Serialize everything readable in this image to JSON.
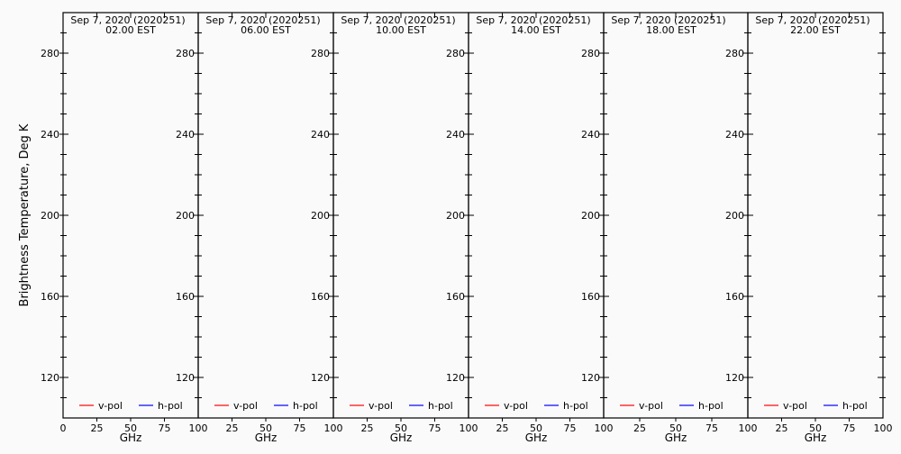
{
  "chart_data": [
    {
      "type": "line",
      "title": "Sep  7, 2020 (2020251)",
      "subtitle": "02.00 EST",
      "xlabel": "GHz",
      "xlim": [
        0,
        100
      ],
      "ylim": [
        100,
        300
      ],
      "xticks": [
        "0",
        "25",
        "50",
        "75",
        "100"
      ],
      "yticks": [
        "120",
        "160",
        "200",
        "240",
        "280"
      ],
      "series": [
        {
          "name": "v-pol",
          "color": "#ff0000",
          "x": [],
          "y": []
        },
        {
          "name": "h-pol",
          "color": "#0000ff",
          "x": [],
          "y": []
        }
      ],
      "legend": "bottom"
    },
    {
      "type": "line",
      "title": "Sep  7, 2020 (2020251)",
      "subtitle": "06.00 EST",
      "xlabel": "GHz",
      "xlim": [
        0,
        100
      ],
      "ylim": [
        100,
        300
      ],
      "xticks": [
        "25",
        "50",
        "75",
        "100"
      ],
      "yticks": [
        "120",
        "160",
        "200",
        "240",
        "280"
      ],
      "series": [
        {
          "name": "v-pol",
          "color": "#ff0000",
          "x": [],
          "y": []
        },
        {
          "name": "h-pol",
          "color": "#0000ff",
          "x": [],
          "y": []
        }
      ],
      "legend": "bottom"
    },
    {
      "type": "line",
      "title": "Sep  7, 2020 (2020251)",
      "subtitle": "10.00 EST",
      "xlabel": "GHz",
      "xlim": [
        0,
        100
      ],
      "ylim": [
        100,
        300
      ],
      "xticks": [
        "25",
        "50",
        "75",
        "100"
      ],
      "yticks": [
        "120",
        "160",
        "200",
        "240",
        "280"
      ],
      "series": [
        {
          "name": "v-pol",
          "color": "#ff0000",
          "x": [],
          "y": []
        },
        {
          "name": "h-pol",
          "color": "#0000ff",
          "x": [],
          "y": []
        }
      ],
      "legend": "bottom"
    },
    {
      "type": "line",
      "title": "Sep  7, 2020 (2020251)",
      "subtitle": "14.00 EST",
      "xlabel": "GHz",
      "xlim": [
        0,
        100
      ],
      "ylim": [
        100,
        300
      ],
      "xticks": [
        "25",
        "50",
        "75",
        "100"
      ],
      "yticks": [
        "120",
        "160",
        "200",
        "240",
        "280"
      ],
      "series": [
        {
          "name": "v-pol",
          "color": "#ff0000",
          "x": [],
          "y": []
        },
        {
          "name": "h-pol",
          "color": "#0000ff",
          "x": [],
          "y": []
        }
      ],
      "legend": "bottom"
    },
    {
      "type": "line",
      "title": "Sep  7, 2020 (2020251)",
      "subtitle": "18.00 EST",
      "xlabel": "GHz",
      "xlim": [
        0,
        100
      ],
      "ylim": [
        100,
        300
      ],
      "xticks": [
        "25",
        "50",
        "75",
        "100"
      ],
      "yticks": [
        "120",
        "160",
        "200",
        "240",
        "280"
      ],
      "series": [
        {
          "name": "v-pol",
          "color": "#ff0000",
          "x": [],
          "y": []
        },
        {
          "name": "h-pol",
          "color": "#0000ff",
          "x": [],
          "y": []
        }
      ],
      "legend": "bottom"
    },
    {
      "type": "line",
      "title": "Sep  7, 2020 (2020251)",
      "subtitle": "22.00 EST",
      "xlabel": "GHz",
      "xlim": [
        0,
        100
      ],
      "ylim": [
        100,
        300
      ],
      "xticks": [
        "25",
        "50",
        "75",
        "100"
      ],
      "yticks": [
        "120",
        "160",
        "200",
        "240",
        "280"
      ],
      "series": [
        {
          "name": "v-pol",
          "color": "#ff0000",
          "x": [],
          "y": []
        },
        {
          "name": "h-pol",
          "color": "#0000ff",
          "x": [],
          "y": []
        }
      ],
      "legend": "bottom"
    }
  ],
  "ylabel": "Brightness Temperature, Deg K"
}
